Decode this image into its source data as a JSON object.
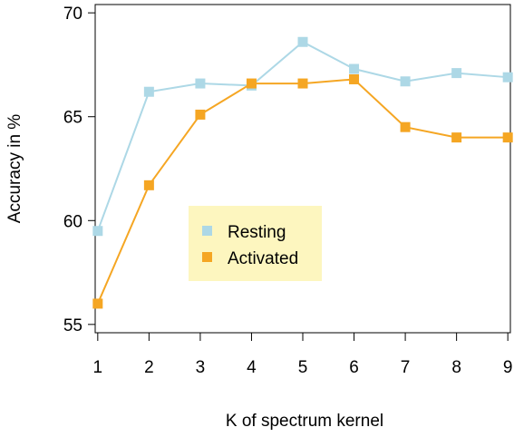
{
  "chart_data": {
    "type": "line",
    "xlabel": "K of spectrum kernel",
    "ylabel": "Accuracy in %",
    "x": [
      1,
      2,
      3,
      4,
      5,
      6,
      7,
      8,
      9
    ],
    "xlim": [
      0.95,
      9.05
    ],
    "ylim": [
      54.6,
      70.4
    ],
    "xticks": [
      "1",
      "2",
      "3",
      "4",
      "5",
      "6",
      "7",
      "8",
      "9"
    ],
    "yticks": [
      55,
      60,
      65,
      70
    ],
    "grid": false,
    "legend_placement": "center-left",
    "series": [
      {
        "name": "Resting",
        "color": "#add8e6",
        "values": [
          59.5,
          66.2,
          66.6,
          66.5,
          68.6,
          67.3,
          66.7,
          67.1,
          66.9
        ]
      },
      {
        "name": "Activated",
        "color": "#f5a623",
        "values": [
          56.0,
          61.7,
          65.1,
          66.6,
          66.6,
          66.8,
          64.5,
          64.0,
          64.0
        ]
      }
    ],
    "legend_background": "#fdf6bf"
  }
}
